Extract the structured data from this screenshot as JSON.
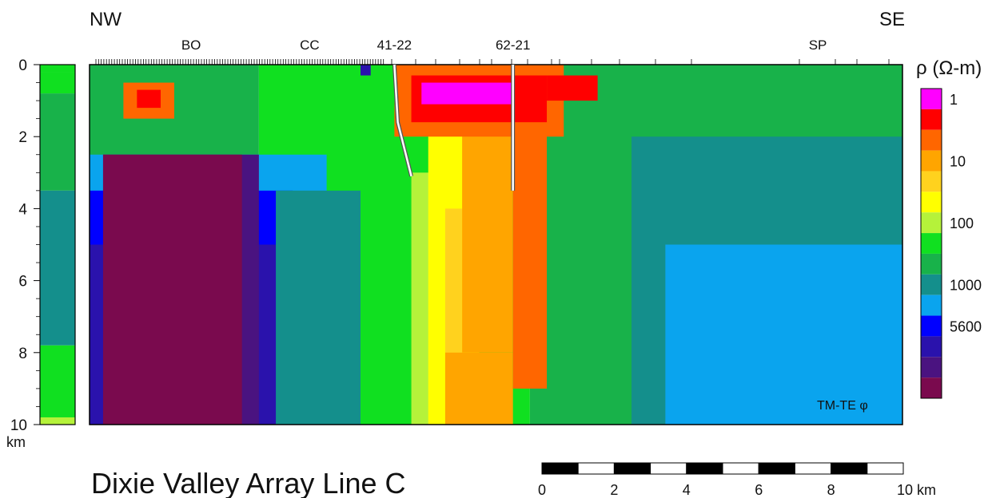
{
  "chart_data": {
    "type": "heatmap",
    "title": "Dixie Valley Array Line C",
    "direction_left": "NW",
    "direction_right": "SE",
    "y_unit": "km",
    "ylim": [
      0,
      10
    ],
    "y_ticks": [
      "0",
      "2",
      "4",
      "6",
      "8",
      "10"
    ],
    "colorbar_title": "ρ (Ω-m)",
    "colorbar_ticks": [
      {
        "label": "1",
        "level": 0
      },
      {
        "label": "10",
        "level": 3
      },
      {
        "label": "100",
        "level": 6
      },
      {
        "label": "1000",
        "level": 9
      },
      {
        "label": "5600",
        "level": 11
      }
    ],
    "colorbar_levels": [
      "#ff00ff",
      "#ff0000",
      "#ff6600",
      "#ffa500",
      "#ffd21e",
      "#ffff00",
      "#b5f23a",
      "#10e020",
      "#18b24a",
      "#148f8c",
      "#0aa4ee",
      "#0000ff",
      "#2a12ac",
      "#4a1380",
      "#7a0a4e"
    ],
    "mode_label": "TM-TE φ",
    "stations": [
      {
        "label": "BO",
        "x_km": 3.0
      },
      {
        "label": "CC",
        "x_km": 6.5
      },
      {
        "label": "41-22",
        "x_km": 9.0
      },
      {
        "label": "62-21",
        "x_km": 12.5
      },
      {
        "label": "SP",
        "x_km": 21.5
      }
    ],
    "wells": [
      {
        "label": "41-22",
        "top": [
          9.0,
          0
        ],
        "kink": [
          9.1,
          1.6
        ],
        "bottom": [
          9.5,
          3.1
        ]
      },
      {
        "label": "62-21",
        "top": [
          12.5,
          0
        ],
        "kink": [
          12.5,
          1.0
        ],
        "bottom": [
          12.5,
          3.5
        ]
      }
    ],
    "scale_bar": {
      "ticks": [
        "0",
        "2",
        "4",
        "6",
        "8",
        "10 km"
      ],
      "max_km": 10,
      "segments": 10
    },
    "column_model": [
      {
        "top_km": 0,
        "bottom_km": 0.2,
        "level": 7
      },
      {
        "top_km": 0.2,
        "bottom_km": 0.8,
        "level": 7
      },
      {
        "top_km": 0.8,
        "bottom_km": 3.5,
        "level": 8
      },
      {
        "top_km": 3.5,
        "bottom_km": 7.8,
        "level": 9
      },
      {
        "top_km": 7.8,
        "bottom_km": 9.8,
        "level": 7
      },
      {
        "top_km": 9.8,
        "bottom_km": 10,
        "level": 6
      }
    ],
    "resistivity_cells": [
      {
        "x": [
          0,
          5
        ],
        "y": [
          0,
          10
        ],
        "level": 8
      },
      {
        "x": [
          5,
          13
        ],
        "y": [
          0,
          10
        ],
        "level": 7
      },
      {
        "x": [
          13,
          24
        ],
        "y": [
          0,
          10
        ],
        "level": 8
      },
      {
        "x": [
          16,
          24
        ],
        "y": [
          2,
          10
        ],
        "level": 9
      },
      {
        "x": [
          17,
          24
        ],
        "y": [
          5,
          10
        ],
        "level": 10
      },
      {
        "x": [
          0,
          7
        ],
        "y": [
          2.5,
          10
        ],
        "level": 10
      },
      {
        "x": [
          0,
          6
        ],
        "y": [
          3.5,
          10
        ],
        "level": 11
      },
      {
        "x": [
          0,
          5.5
        ],
        "y": [
          5,
          10
        ],
        "level": 12
      },
      {
        "x": [
          0.4,
          5
        ],
        "y": [
          2.5,
          10
        ],
        "level": 13
      },
      {
        "x": [
          0.4,
          4.5
        ],
        "y": [
          2.5,
          10
        ],
        "level": 14
      },
      {
        "x": [
          0,
          0.3
        ],
        "y": [
          0,
          0.5
        ],
        "level": 8
      },
      {
        "x": [
          5.5,
          8
        ],
        "y": [
          3.5,
          10
        ],
        "level": 9
      },
      {
        "x": [
          8,
          10
        ],
        "y": [
          1.5,
          10
        ],
        "level": 7
      },
      {
        "x": [
          9.5,
          11.5
        ],
        "y": [
          3,
          10
        ],
        "level": 6
      },
      {
        "x": [
          10,
          11.5
        ],
        "y": [
          1.5,
          10
        ],
        "level": 5
      },
      {
        "x": [
          10.5,
          11
        ],
        "y": [
          4,
          10
        ],
        "level": 4
      },
      {
        "x": [
          10.5,
          12.5
        ],
        "y": [
          8,
          10
        ],
        "level": 3
      },
      {
        "x": [
          11,
          12.5
        ],
        "y": [
          1,
          8
        ],
        "level": 3
      },
      {
        "x": [
          12.5,
          13.5
        ],
        "y": [
          0.5,
          9
        ],
        "level": 2
      },
      {
        "x": [
          9,
          14
        ],
        "y": [
          0,
          2
        ],
        "level": 2
      },
      {
        "x": [
          9.5,
          13.5
        ],
        "y": [
          0.3,
          1.6
        ],
        "level": 1
      },
      {
        "x": [
          9.8,
          12.5
        ],
        "y": [
          0.5,
          1.1
        ],
        "level": 0
      },
      {
        "x": [
          13.5,
          15
        ],
        "y": [
          0.3,
          1
        ],
        "level": 1
      },
      {
        "x": [
          1,
          2.5
        ],
        "y": [
          0.5,
          1.5
        ],
        "level": 2
      },
      {
        "x": [
          1.4,
          2.1
        ],
        "y": [
          0.7,
          1.2
        ],
        "level": 1
      },
      {
        "x": [
          8,
          8.3
        ],
        "y": [
          0,
          0.3
        ],
        "level": 12
      },
      {
        "x": [
          6.5,
          9
        ],
        "y": [
          0.5,
          1.3
        ],
        "level": 7
      }
    ]
  }
}
